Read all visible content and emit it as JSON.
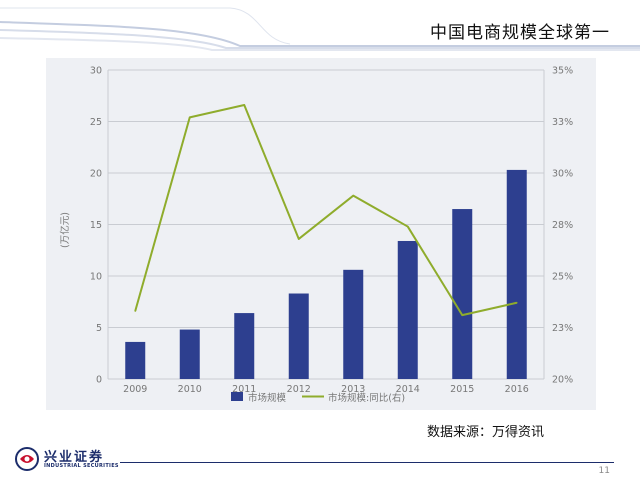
{
  "header": {
    "title": "中国电商规模全球第一"
  },
  "source": "数据来源：万得资讯",
  "logo": {
    "cn": "兴业证券",
    "en": "INDUSTRIAL SECURITIES",
    "icon": "industrial-securities-logo-icon"
  },
  "page_number": "11",
  "colors": {
    "bar": "#2d3f8f",
    "line": "#8fac2c",
    "grid": "#c9ccd2",
    "panel": "#eef0f4",
    "brand": "#1c2d6b"
  },
  "chart_data": {
    "type": "bar",
    "categories": [
      "2009",
      "2010",
      "2011",
      "2012",
      "2013",
      "2014",
      "2015",
      "2016"
    ],
    "series": [
      {
        "name": "市场规模",
        "type": "bar",
        "axis": "left",
        "values": [
          3.6,
          4.8,
          6.4,
          8.3,
          10.6,
          13.4,
          16.5,
          20.3
        ]
      },
      {
        "name": "市场规模:同比(右)",
        "type": "line",
        "axis": "right",
        "values": [
          0.233,
          0.327,
          0.333,
          0.268,
          0.289,
          0.274,
          0.231,
          0.237
        ]
      }
    ],
    "ylabel": "(万亿元)",
    "ylim": [
      0,
      30
    ],
    "yticks": [
      "0",
      "5",
      "10",
      "15",
      "20",
      "25",
      "30"
    ],
    "y2lim": [
      0.2,
      0.35
    ],
    "y2ticks": [
      "20%",
      "23%",
      "25%",
      "28%",
      "30%",
      "33%",
      "35%"
    ],
    "grid": true,
    "legend": "bottom"
  }
}
